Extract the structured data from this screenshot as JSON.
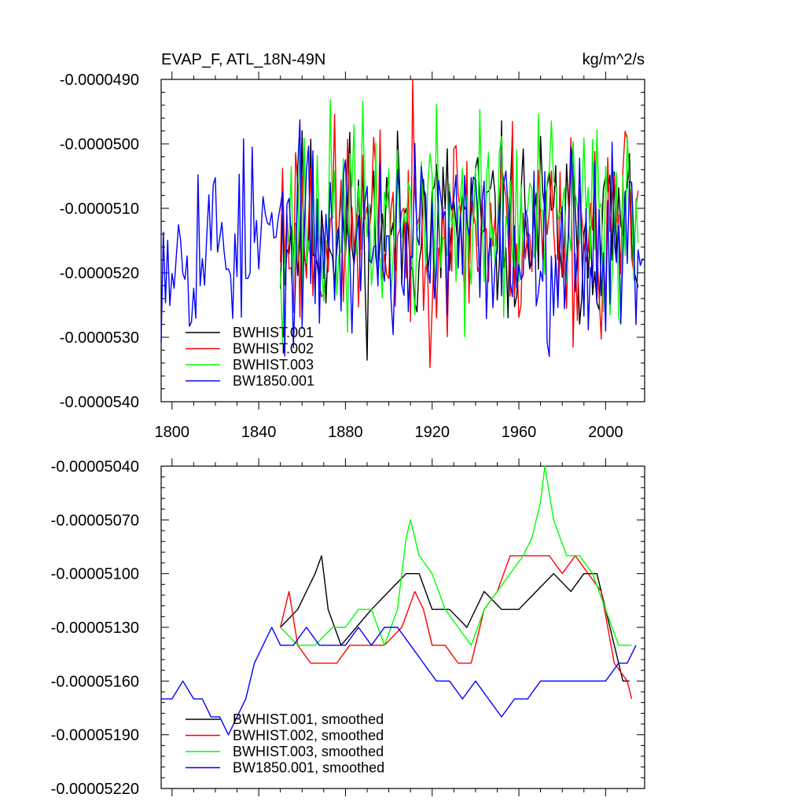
{
  "chart_data": [
    {
      "type": "line",
      "title": "EVAP_F, ATL_18N-49N",
      "units": "kg/m^2/s",
      "xlim": [
        1795,
        2018
      ],
      "ylim": [
        -5.4e-05,
        -4.9e-05
      ],
      "y_ticks": [
        -4.9e-05,
        -5e-05,
        -5.1e-05,
        -5.2e-05,
        -5.3e-05,
        -5.4e-05
      ],
      "y_tick_labels": [
        "-0.0000490",
        "-0.0000500",
        "-0.0000510",
        "-0.0000520",
        "-0.0000530",
        "-0.0000540"
      ],
      "x_ticks": [
        1800,
        1840,
        1880,
        1920,
        1960,
        2000
      ],
      "x_tick_labels": [
        "1800",
        "1840",
        "1880",
        "1920",
        "1960",
        "2000"
      ],
      "legend_position": "bottom-left",
      "series": [
        {
          "name": "BWHIST.001",
          "color": "#000000",
          "x_start": 1850,
          "x_end": 2015,
          "mean": -5.13e-05,
          "amplitude": 9e-07,
          "seed": 11
        },
        {
          "name": "BWHIST.002",
          "color": "#ff0000",
          "x_start": 1850,
          "x_end": 2015,
          "mean": -5.13e-05,
          "amplitude": 1e-06,
          "seed": 23
        },
        {
          "name": "BWHIST.003",
          "color": "#00ff00",
          "x_start": 1850,
          "x_end": 2015,
          "mean": -5.12e-05,
          "amplitude": 1e-06,
          "seed": 37
        },
        {
          "name": "BW1850.001",
          "color": "#0000ff",
          "x_start": 1795,
          "x_end": 2018,
          "mean": -5.15e-05,
          "amplitude": 9e-07,
          "seed": 53
        }
      ]
    },
    {
      "type": "line",
      "title": "",
      "xlim": [
        1795,
        2018
      ],
      "ylim": [
        -5.22e-05,
        -5.04e-05
      ],
      "y_ticks": [
        -5.04e-05,
        -5.07e-05,
        -5.1e-05,
        -5.13e-05,
        -5.16e-05,
        -5.19e-05,
        -5.22e-05
      ],
      "y_tick_labels": [
        "-0.00005040",
        "-0.00005070",
        "-0.00005100",
        "-0.00005130",
        "-0.00005160",
        "-0.00005190",
        "-0.00005220"
      ],
      "x_ticks": [
        1800,
        1840,
        1880,
        1920,
        1960,
        2000
      ],
      "x_tick_labels": [],
      "legend_position": "bottom-left",
      "series": [
        {
          "name": "BWHIST.001, smoothed",
          "color": "#000000",
          "x": [
            1850,
            1858,
            1866,
            1869,
            1872,
            1878,
            1885,
            1892,
            1900,
            1908,
            1914,
            1920,
            1928,
            1936,
            1944,
            1952,
            1960,
            1968,
            1976,
            1984,
            1990,
            1996,
            2002,
            2008,
            2011
          ],
          "y": [
            -5.13e-05,
            -5.12e-05,
            -5.1e-05,
            -5.09e-05,
            -5.12e-05,
            -5.14e-05,
            -5.13e-05,
            -5.12e-05,
            -5.11e-05,
            -5.1e-05,
            -5.1e-05,
            -5.12e-05,
            -5.12e-05,
            -5.13e-05,
            -5.11e-05,
            -5.12e-05,
            -5.12e-05,
            -5.11e-05,
            -5.1e-05,
            -5.11e-05,
            -5.1e-05,
            -5.1e-05,
            -5.13e-05,
            -5.16e-05,
            -5.16e-05
          ]
        },
        {
          "name": "BWHIST.002, smoothed",
          "color": "#ff0000",
          "x": [
            1850,
            1854,
            1858,
            1864,
            1870,
            1876,
            1882,
            1890,
            1898,
            1906,
            1912,
            1916,
            1920,
            1926,
            1932,
            1938,
            1944,
            1950,
            1956,
            1962,
            1968,
            1974,
            1980,
            1986,
            1992,
            1998,
            2004,
            2010,
            2012
          ],
          "y": [
            -5.13e-05,
            -5.11e-05,
            -5.14e-05,
            -5.15e-05,
            -5.15e-05,
            -5.15e-05,
            -5.14e-05,
            -5.14e-05,
            -5.14e-05,
            -5.13e-05,
            -5.11e-05,
            -5.12e-05,
            -5.14e-05,
            -5.14e-05,
            -5.15e-05,
            -5.15e-05,
            -5.12e-05,
            -5.11e-05,
            -5.09e-05,
            -5.09e-05,
            -5.09e-05,
            -5.09e-05,
            -5.1e-05,
            -5.09e-05,
            -5.1e-05,
            -5.11e-05,
            -5.15e-05,
            -5.16e-05,
            -5.17e-05
          ]
        },
        {
          "name": "BWHIST.003, smoothed",
          "color": "#00ff00",
          "x": [
            1850,
            1858,
            1866,
            1874,
            1880,
            1886,
            1892,
            1898,
            1904,
            1908,
            1910,
            1914,
            1920,
            1926,
            1932,
            1938,
            1944,
            1950,
            1956,
            1962,
            1966,
            1970,
            1972,
            1976,
            1982,
            1988,
            1994,
            2000,
            2006,
            2012
          ],
          "y": [
            -5.13e-05,
            -5.14e-05,
            -5.14e-05,
            -5.13e-05,
            -5.13e-05,
            -5.12e-05,
            -5.12e-05,
            -5.14e-05,
            -5.12e-05,
            -5.08e-05,
            -5.07e-05,
            -5.09e-05,
            -5.1e-05,
            -5.12e-05,
            -5.13e-05,
            -5.14e-05,
            -5.12e-05,
            -5.11e-05,
            -5.1e-05,
            -5.09e-05,
            -5.08e-05,
            -5.06e-05,
            -5.04e-05,
            -5.07e-05,
            -5.09e-05,
            -5.09e-05,
            -5.1e-05,
            -5.12e-05,
            -5.14e-05,
            -5.14e-05
          ]
        },
        {
          "name": "BW1850.001, smoothed",
          "color": "#0000ff",
          "x": [
            1795,
            1800,
            1805,
            1810,
            1814,
            1818,
            1822,
            1826,
            1830,
            1834,
            1838,
            1842,
            1846,
            1850,
            1856,
            1862,
            1868,
            1874,
            1880,
            1886,
            1892,
            1898,
            1904,
            1910,
            1916,
            1922,
            1928,
            1934,
            1940,
            1946,
            1952,
            1958,
            1964,
            1970,
            1976,
            1982,
            1988,
            1994,
            2000,
            2006,
            2010,
            2014
          ],
          "y": [
            -5.17e-05,
            -5.17e-05,
            -5.16e-05,
            -5.17e-05,
            -5.17e-05,
            -5.18e-05,
            -5.18e-05,
            -5.19e-05,
            -5.18e-05,
            -5.17e-05,
            -5.15e-05,
            -5.14e-05,
            -5.13e-05,
            -5.14e-05,
            -5.14e-05,
            -5.13e-05,
            -5.14e-05,
            -5.14e-05,
            -5.14e-05,
            -5.13e-05,
            -5.14e-05,
            -5.13e-05,
            -5.13e-05,
            -5.14e-05,
            -5.15e-05,
            -5.16e-05,
            -5.16e-05,
            -5.17e-05,
            -5.16e-05,
            -5.17e-05,
            -5.18e-05,
            -5.17e-05,
            -5.17e-05,
            -5.16e-05,
            -5.16e-05,
            -5.16e-05,
            -5.16e-05,
            -5.16e-05,
            -5.16e-05,
            -5.15e-05,
            -5.15e-05,
            -5.14e-05
          ]
        }
      ]
    }
  ]
}
